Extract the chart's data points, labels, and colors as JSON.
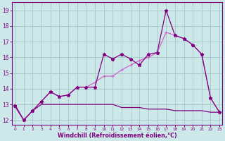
{
  "x": [
    0,
    1,
    2,
    3,
    4,
    5,
    6,
    7,
    8,
    9,
    10,
    11,
    12,
    13,
    14,
    15,
    16,
    17,
    18,
    19,
    20,
    21,
    22,
    23
  ],
  "line1": [
    12.9,
    12.0,
    12.6,
    13.2,
    13.8,
    13.5,
    13.6,
    14.1,
    14.1,
    14.1,
    16.2,
    15.9,
    16.2,
    15.9,
    15.5,
    16.2,
    16.3,
    19.0,
    17.4,
    17.2,
    16.8,
    16.2,
    13.4,
    12.5
  ],
  "line2": [
    12.9,
    12.0,
    12.6,
    13.2,
    13.8,
    13.5,
    13.6,
    14.1,
    14.1,
    14.4,
    14.8,
    14.8,
    15.2,
    15.5,
    15.8,
    16.0,
    16.3,
    17.6,
    17.4,
    17.2,
    16.8,
    16.2,
    13.4,
    12.5
  ],
  "line3": [
    13.0,
    12.0,
    12.6,
    13.0,
    13.0,
    13.0,
    13.0,
    13.0,
    13.0,
    13.0,
    13.0,
    13.0,
    12.8,
    12.8,
    12.8,
    12.7,
    12.7,
    12.7,
    12.6,
    12.6,
    12.6,
    12.6,
    12.5,
    12.5
  ],
  "color_dark": "#800080",
  "color_light": "#cc66cc",
  "bg_color": "#cce8e8",
  "grid_color": "#aacccc",
  "xlabel": "Windchill (Refroidissement éolien,°C)",
  "yticks": [
    12,
    13,
    14,
    15,
    16,
    17,
    18,
    19
  ],
  "xticks": [
    0,
    1,
    2,
    3,
    4,
    5,
    6,
    7,
    8,
    9,
    10,
    11,
    12,
    13,
    14,
    15,
    16,
    17,
    18,
    19,
    20,
    21,
    22,
    23
  ],
  "ylim": [
    11.7,
    19.5
  ],
  "xlim": [
    -0.3,
    23.3
  ]
}
